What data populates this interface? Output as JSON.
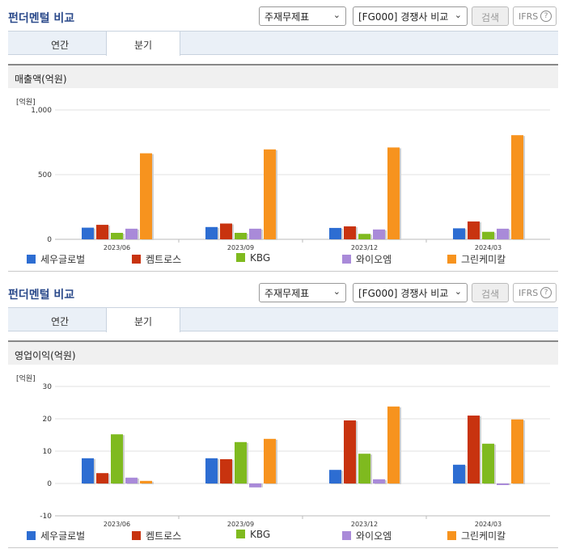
{
  "panels": [
    {
      "title": "펀더멘털 비교",
      "select1": "주재무제표",
      "select2": "[FG000] 경쟁사 비교",
      "search_button": "검색",
      "ifrs_label": "IFRS",
      "ifrs_help": "?",
      "tabs": [
        "연간",
        "분기"
      ],
      "section_title": "매출액(억원)",
      "unit": "[억원]"
    },
    {
      "title": "펀더멘털 비교",
      "select1": "주재무제표",
      "select2": "[FG000] 경쟁사 비교",
      "search_button": "검색",
      "ifrs_label": "IFRS",
      "ifrs_help": "?",
      "tabs": [
        "연간",
        "분기"
      ],
      "section_title": "영업이익(억원)",
      "unit": "[억원]"
    }
  ],
  "colors": {
    "세우글로벌": "#2d6dd2",
    "켐트로스": "#c8330f",
    "KBG": "#7fba1f",
    "와이오엠": "#a98ad9",
    "그린케미칼": "#f7931e"
  },
  "chart_data": [
    {
      "type": "bar",
      "categories": [
        "2023/06",
        "2023/09",
        "2023/12",
        "2024/03"
      ],
      "ylim": [
        0,
        1000
      ],
      "yticks": [
        "0",
        "500",
        "1,000"
      ],
      "series": [
        {
          "name": "세우글로벌",
          "values": [
            90,
            95,
            88,
            85
          ]
        },
        {
          "name": "켐트로스",
          "values": [
            112,
            122,
            100,
            138
          ]
        },
        {
          "name": "KBG",
          "values": [
            50,
            50,
            42,
            58
          ]
        },
        {
          "name": "와이오엠",
          "values": [
            82,
            82,
            76,
            82
          ]
        },
        {
          "name": "그린케미칼",
          "values": [
            665,
            695,
            710,
            805
          ]
        }
      ]
    },
    {
      "type": "bar",
      "categories": [
        "2023/06",
        "2023/09",
        "2023/12",
        "2024/03"
      ],
      "ylim": [
        -10,
        30
      ],
      "yticks": [
        "-10",
        "0",
        "10",
        "20",
        "30"
      ],
      "series": [
        {
          "name": "세우글로벌",
          "values": [
            7.8,
            7.8,
            4.2,
            5.8
          ]
        },
        {
          "name": "켐트로스",
          "values": [
            3.2,
            7.5,
            19.5,
            21
          ]
        },
        {
          "name": "KBG",
          "values": [
            15.2,
            12.8,
            9.2,
            12.3
          ]
        },
        {
          "name": "와이오엠",
          "values": [
            1.8,
            -1.2,
            1.3,
            -0.5
          ]
        },
        {
          "name": "그린케미칼",
          "values": [
            0.8,
            13.8,
            23.8,
            19.8
          ]
        }
      ]
    }
  ]
}
